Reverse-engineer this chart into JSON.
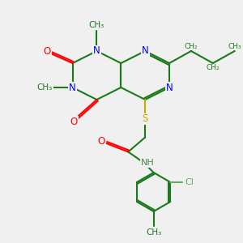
{
  "background_color": "#f0f0f0",
  "bond_color": "#1a7a1a",
  "n_color": "#0000ff",
  "o_color": "#ff0000",
  "s_color": "#ccaa00",
  "cl_color": "#6aaa6a",
  "h_color": "#4a8a4a",
  "line_width": 1.5,
  "font_size": 8.5,
  "fig_width": 3.0,
  "fig_height": 3.0,
  "xlim": [
    0,
    10
  ],
  "ylim": [
    0,
    10
  ]
}
